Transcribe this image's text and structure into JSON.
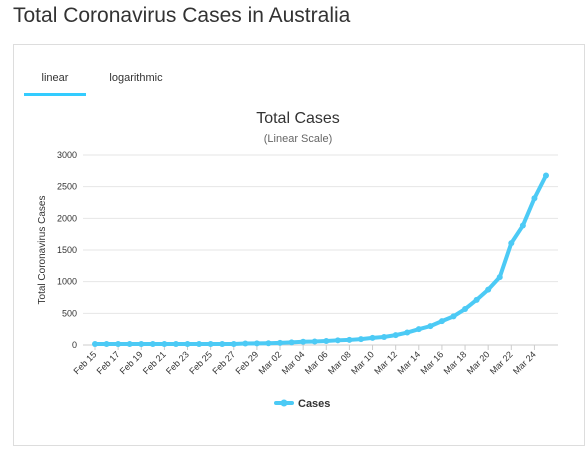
{
  "page": {
    "title": "Total Coronavirus Cases in Australia"
  },
  "tabs": [
    {
      "label": "linear",
      "active": true
    },
    {
      "label": "logarithmic",
      "active": false
    }
  ],
  "colors": {
    "series": "#4ccaf5",
    "tab_underline": "#33ccff",
    "grid": "#e6e6e6"
  },
  "chart_data": {
    "type": "line",
    "title": "Total Cases",
    "subtitle": "(Linear Scale)",
    "ylabel": "Total Coronavirus Cases",
    "xlabel": "",
    "ylim": [
      0,
      3000
    ],
    "yticks": [
      0,
      500,
      1000,
      1500,
      2000,
      2500,
      3000
    ],
    "grid": true,
    "legend": "bottom-center",
    "x": [
      "Feb 15",
      "Feb 16",
      "Feb 17",
      "Feb 18",
      "Feb 19",
      "Feb 20",
      "Feb 21",
      "Feb 22",
      "Feb 23",
      "Feb 24",
      "Feb 25",
      "Feb 26",
      "Feb 27",
      "Feb 28",
      "Feb 29",
      "Mar 01",
      "Mar 02",
      "Mar 03",
      "Mar 04",
      "Mar 05",
      "Mar 06",
      "Mar 07",
      "Mar 08",
      "Mar 09",
      "Mar 10",
      "Mar 11",
      "Mar 12",
      "Mar 13",
      "Mar 14",
      "Mar 15",
      "Mar 16",
      "Mar 17",
      "Mar 18",
      "Mar 19",
      "Mar 20",
      "Mar 21",
      "Mar 22",
      "Mar 23",
      "Mar 24",
      "Mar 25"
    ],
    "x_tick_labels": [
      "Feb 15",
      "Feb 17",
      "Feb 19",
      "Feb 21",
      "Feb 23",
      "Feb 25",
      "Feb 27",
      "Feb 29",
      "Mar 02",
      "Mar 04",
      "Mar 06",
      "Mar 08",
      "Mar 10",
      "Mar 12",
      "Mar 14",
      "Mar 16",
      "Mar 18",
      "Mar 20",
      "Mar 22",
      "Mar 24"
    ],
    "series": [
      {
        "name": "Cases",
        "values": [
          15,
          15,
          15,
          15,
          15,
          15,
          15,
          15,
          15,
          15,
          15,
          15,
          15,
          23,
          25,
          27,
          33,
          41,
          52,
          55,
          63,
          74,
          80,
          92,
          112,
          127,
          156,
          197,
          250,
          298,
          377,
          452,
          568,
          713,
          874,
          1071,
          1609,
          1886,
          2317,
          2676
        ]
      }
    ]
  }
}
